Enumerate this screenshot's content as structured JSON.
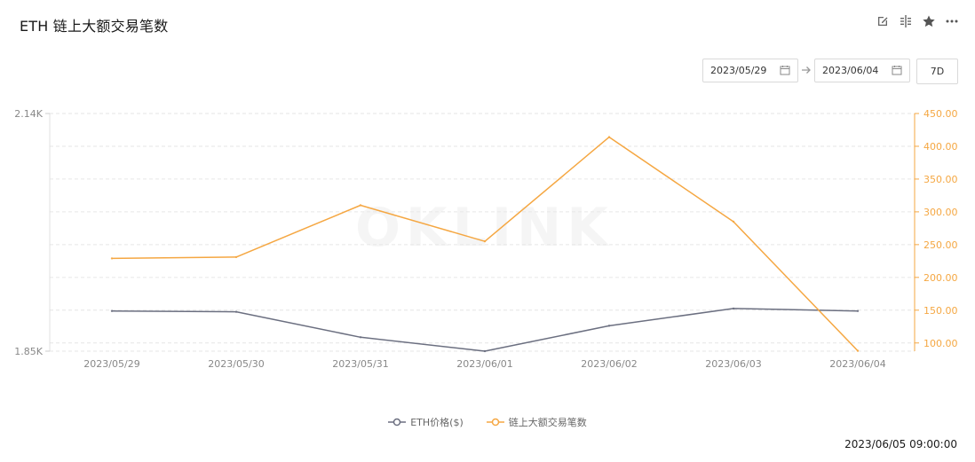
{
  "header": {
    "title": "ETH 链上大额交易笔数",
    "icons": [
      "edit-icon",
      "compare-icon",
      "star-icon",
      "more-icon"
    ]
  },
  "filters": {
    "start_date": "2023/05/29",
    "end_date": "2023/06/04",
    "range_label": "7D"
  },
  "watermark": "OKLINK",
  "timestamp": "2023/06/05 09:00:00",
  "chart_data": {
    "type": "line",
    "categories": [
      "2023/05/29",
      "2023/05/30",
      "2023/05/31",
      "2023/06/01",
      "2023/06/02",
      "2023/06/03",
      "2023/06/04"
    ],
    "left_axis": {
      "ticks": [
        "2.14K",
        "1.85K"
      ],
      "min": 1850,
      "max": 2140
    },
    "right_axis": {
      "ticks": [
        "450.00",
        "400.00",
        "350.00",
        "300.00",
        "250.00",
        "200.00",
        "150.00",
        "100.00"
      ],
      "min": 87.5,
      "max": 450
    },
    "grid": true,
    "legend_position": "bottom",
    "series": [
      {
        "name": "ETH价格($)",
        "axis": "left",
        "color": "#6b6f80",
        "values": [
          1899,
          1898,
          1867,
          1850,
          1881,
          1902,
          1899
        ]
      },
      {
        "name": "链上大额交易笔数",
        "axis": "right",
        "color": "#f5a742",
        "values": [
          229,
          231,
          310,
          255,
          414,
          285,
          88
        ]
      }
    ]
  }
}
